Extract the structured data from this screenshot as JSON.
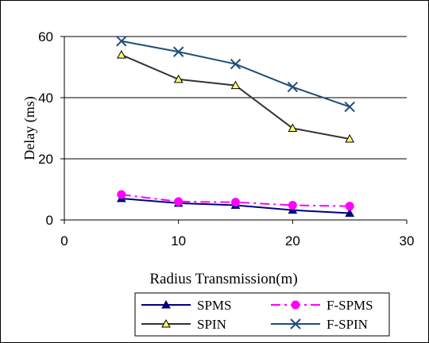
{
  "chart_data": {
    "type": "line",
    "title": "",
    "xlabel": "Radius Transmission(m)",
    "ylabel": "Delay (ms)",
    "x": [
      5,
      10,
      15,
      20,
      25
    ],
    "xlim": [
      0,
      30
    ],
    "ylim": [
      0,
      60
    ],
    "xticks": [
      0,
      10,
      20,
      30
    ],
    "yticks": [
      0,
      20,
      40,
      60
    ],
    "grid": "horizontal",
    "legend_position": "bottom",
    "series": [
      {
        "name": "SPMS",
        "values": [
          7,
          5.5,
          4.8,
          3.2,
          2.2
        ],
        "color": "#000080",
        "marker": "triangle-filled",
        "dash": "solid"
      },
      {
        "name": "F-SPMS",
        "values": [
          8.3,
          6,
          5.8,
          4.8,
          4.5
        ],
        "color": "#ff00ff",
        "marker": "circle",
        "dash": "dashdot"
      },
      {
        "name": "SPIN",
        "values": [
          54,
          46,
          44,
          30,
          26.5
        ],
        "color": "#333333",
        "marker": "triangle-yellow",
        "dash": "solid"
      },
      {
        "name": "F-SPIN",
        "values": [
          58.5,
          55,
          51,
          43.5,
          37
        ],
        "color": "#1f4e79",
        "marker": "x",
        "dash": "solid"
      }
    ]
  }
}
